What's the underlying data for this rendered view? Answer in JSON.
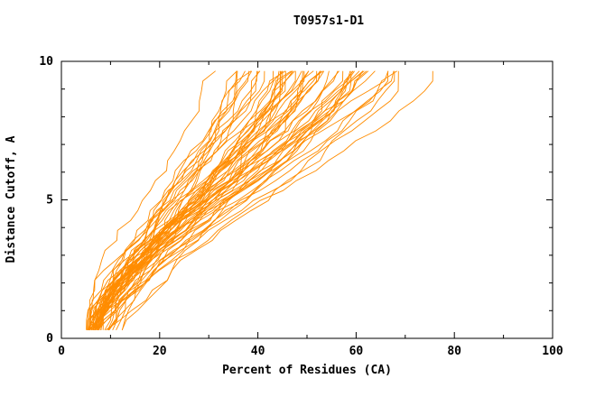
{
  "page": {
    "background_color": "#ffffff",
    "text_color": "#000000"
  },
  "chart_data": {
    "type": "line",
    "title": "T0957s1-D1",
    "xlabel": "Percent of Residues (CA)",
    "ylabel": "Distance Cutoff, A",
    "xlim": [
      0,
      100
    ],
    "ylim": [
      0,
      10
    ],
    "xticks": [
      0,
      20,
      40,
      60,
      80,
      100
    ],
    "yticks": [
      0,
      5,
      10
    ],
    "x_minor_step": 10,
    "y_minor_step": 1,
    "grid": false,
    "legend_position": "none",
    "line_color": "#ff8c00",
    "axis_color": "#000000",
    "description": "Dense family of monotone per-model accuracy curves (percent of CA residues under each distance cutoff). All curves start near x=5-14 at cutoff 0.3 A and rise to cutoff ~9.65 A, ending between x=28 (best model) and x=84 (widest model).",
    "curves": {
      "count": 60,
      "seed": 20190957,
      "y_start": 0.3,
      "y_end": 9.65,
      "x_start_range": [
        5,
        14
      ],
      "x_end_range": [
        28,
        84
      ],
      "levels": 26
    }
  }
}
